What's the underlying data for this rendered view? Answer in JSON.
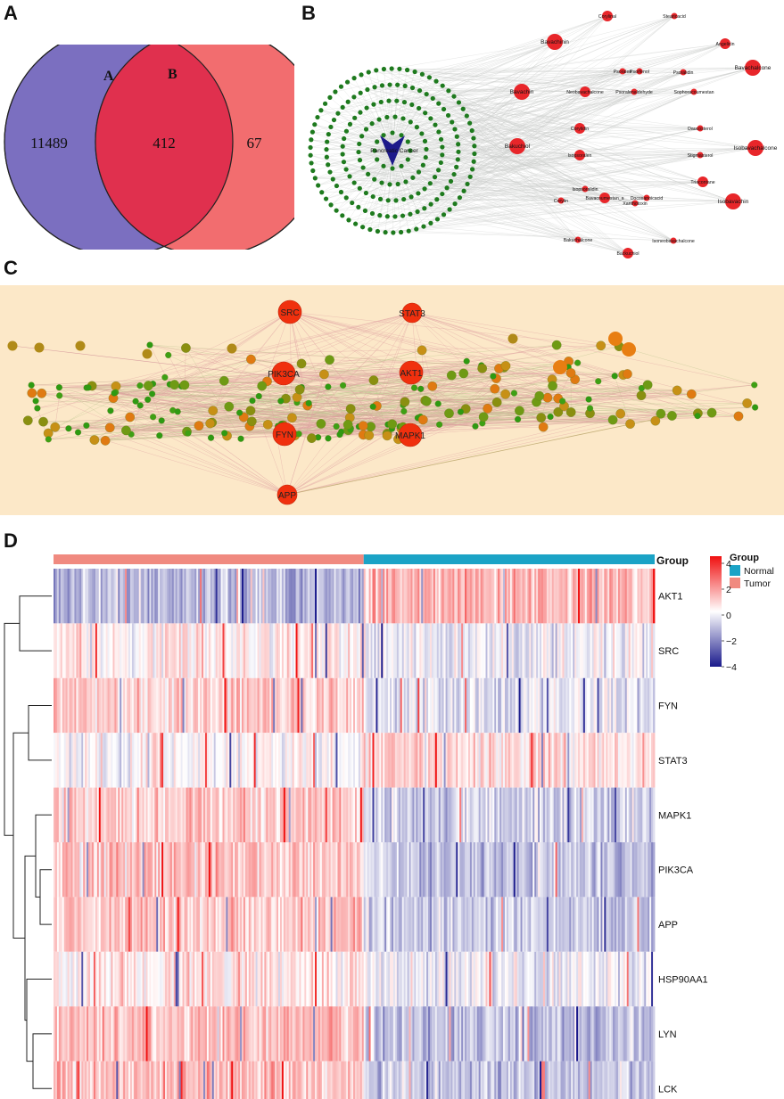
{
  "panels": {
    "a": "A",
    "b": "B",
    "c": "C",
    "d": "D"
  },
  "venn": {
    "set_a_label": "A",
    "set_b_label": "B",
    "only_a": "11489",
    "both": "412",
    "only_b": "67",
    "colors": {
      "a": "#7b6fc0",
      "b": "#f26d6f",
      "overlap": "#e0304e"
    }
  },
  "network_b": {
    "center_label": "Pancreatic Cancer",
    "compounds": [
      "Corylinal",
      "Stearicacid",
      "Bavachinin",
      "Angelicin",
      "Psoralen",
      "Psorfenol",
      "Bavachin",
      "Psoralidin",
      "Bavachalcone",
      "Neobavachalcone",
      "Psoralenaldehyde",
      "Sophoracoumestan",
      "Corylidin",
      "Daucosterol",
      "Bakuchiol",
      "Isopsoralen",
      "Stigmasterol",
      "Isobavachalcone",
      "Triacontane",
      "Isopsoralidin",
      "Corylin",
      "Bavacoumestan_a",
      "Docosanoicacid",
      "Xanthotoxin",
      "Isobavachin",
      "Bakuchalcone",
      "Isoneobavachalcone",
      "Backuchiol"
    ]
  },
  "network_c": {
    "hubs": [
      "SRC",
      "STAT3",
      "PIK3CA",
      "AKT1",
      "FYN",
      "MAPK1",
      "APP"
    ]
  },
  "heatmap": {
    "annotation_label": "Group",
    "legend_title": "Group",
    "groups": [
      {
        "name": "Normal",
        "color": "#1ba3c6"
      },
      {
        "name": "Tumor",
        "color": "#f08a80"
      }
    ]
  },
  "chart_data": {
    "type": "heatmap",
    "title": "",
    "genes": [
      "AKT1",
      "SRC",
      "FYN",
      "STAT3",
      "MAPK1",
      "PIK3CA",
      "APP",
      "HSP90AA1",
      "LYN",
      "LCK"
    ],
    "column_groups": [
      {
        "group": "Tumor",
        "count": 178
      },
      {
        "group": "Normal",
        "count": 167
      }
    ],
    "mean_z_by_group": {
      "Tumor": [
        -1.2,
        0.3,
        0.8,
        0.0,
        0.9,
        1.0,
        1.0,
        0.4,
        1.1,
        1.0
      ],
      "Normal": [
        1.2,
        -0.3,
        -0.4,
        0.6,
        -0.8,
        -1.0,
        -0.9,
        -0.3,
        -1.1,
        -1.0
      ]
    },
    "colorbar": {
      "min": -4,
      "max": 4,
      "ticks": [
        "4",
        "2",
        "0",
        "−2",
        "−4"
      ],
      "low_color": "#1a1a8c",
      "mid_color": "#ffffff",
      "high_color": "#f01010"
    }
  }
}
